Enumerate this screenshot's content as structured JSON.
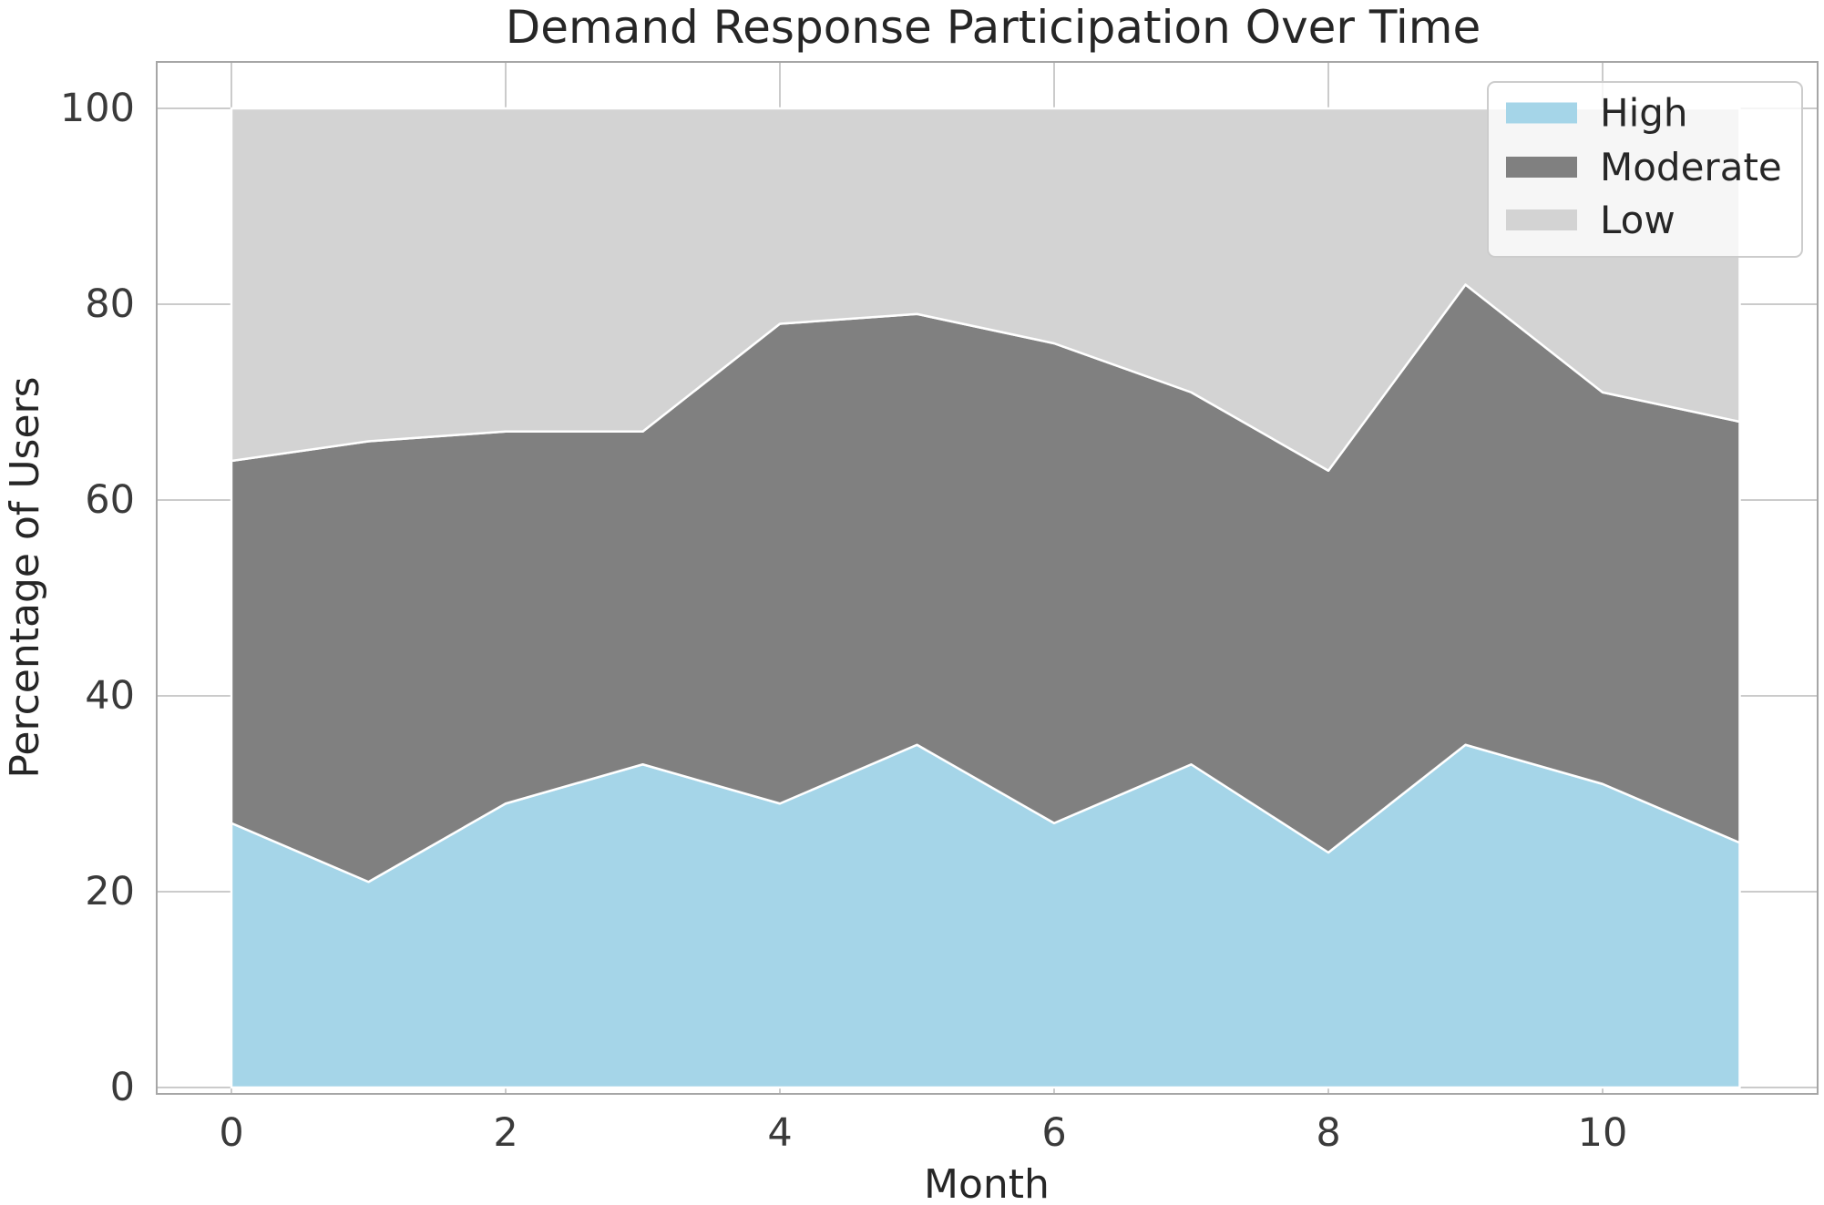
{
  "figure": {
    "background": "#ffffff"
  },
  "chart_data": {
    "type": "area",
    "stacked": true,
    "title": "Demand Response Participation Over Time",
    "xlabel": "Month",
    "ylabel": "Percentage of Users",
    "x": [
      0,
      1,
      2,
      3,
      4,
      5,
      6,
      7,
      8,
      9,
      10,
      11
    ],
    "series": [
      {
        "name": "High",
        "color": "#a5d5e8",
        "values": [
          27,
          21,
          29,
          33,
          29,
          35,
          27,
          33,
          24,
          35,
          31,
          25
        ]
      },
      {
        "name": "Moderate",
        "color": "#808080",
        "values": [
          37,
          45,
          38,
          34,
          49,
          44,
          49,
          38,
          39,
          47,
          40,
          43
        ]
      },
      {
        "name": "Low",
        "color": "#d3d3d3",
        "values": [
          36,
          34,
          33,
          33,
          22,
          21,
          24,
          29,
          37,
          18,
          29,
          32
        ]
      }
    ],
    "xticks": [
      0,
      2,
      4,
      6,
      8,
      10
    ],
    "yticks": [
      0,
      20,
      40,
      60,
      80,
      100
    ],
    "xlim": [
      -0.44,
      11.55
    ],
    "ylim": [
      -0.6,
      104.9
    ],
    "grid": true,
    "legend": {
      "position": "upper right",
      "labels": [
        "High",
        "Moderate",
        "Low"
      ]
    },
    "colors": {
      "grid_line": "#cbcbcb",
      "spine": "#a6a6a6",
      "layer_edge": "#ffffff",
      "legend_background": "rgba(255,255,255,0.8)",
      "legend_border": "#cccccc"
    }
  }
}
